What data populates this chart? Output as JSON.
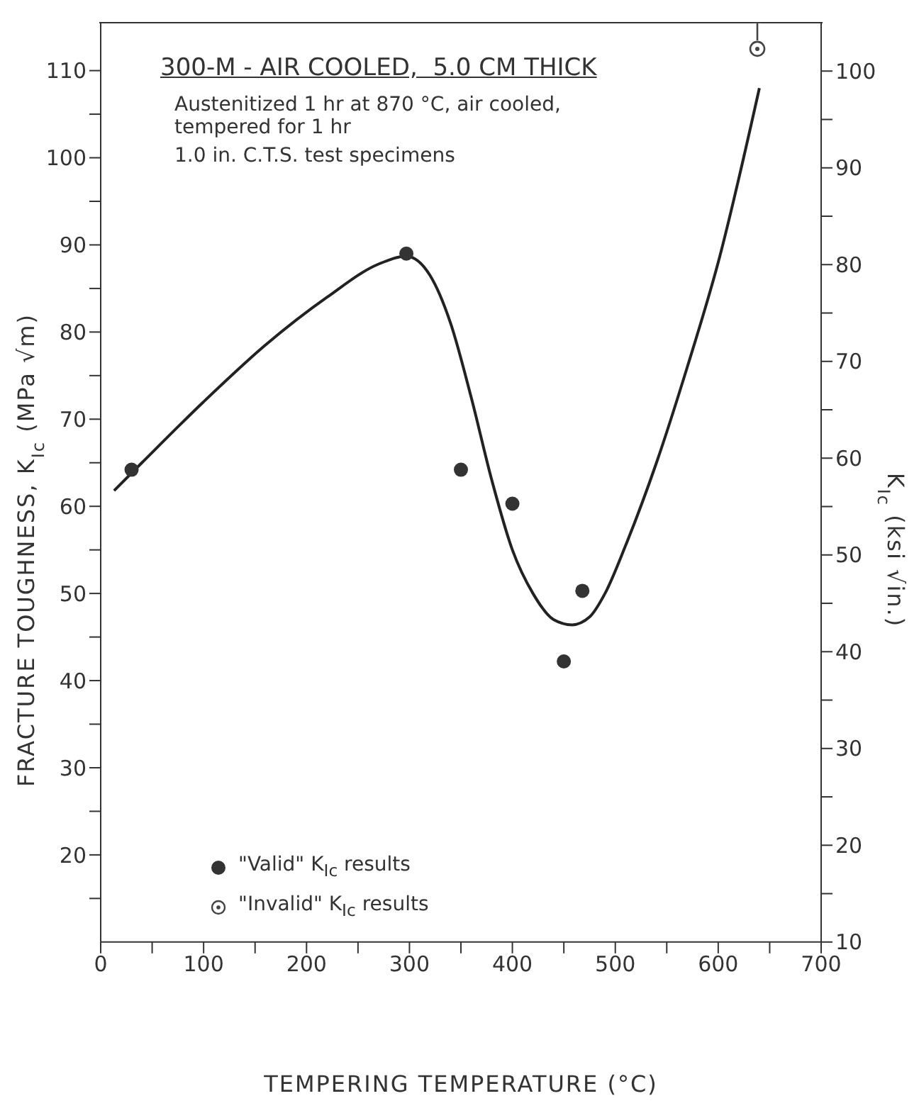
{
  "chart_data": {
    "type": "scatter",
    "title": "300-M - AIR COOLED,  5.0 CM THICK",
    "subtitle": "Austenitized 1 hr at 870 °C, air cooled, tempered for 1 hr",
    "annotations": [
      "1.0 in. C.T.S. test specimens"
    ],
    "xlabel": "TEMPERING TEMPERATURE (°C)",
    "ylabel": "FRACTURE TOUGHNESS, K$_{Ic}$ (MPa √m)",
    "y2label": "K$_{Ic}$ (ksi √in.)",
    "xlim": [
      0,
      700
    ],
    "xticks": [
      0,
      {
        "value": 50,
        "label": null
      },
      100,
      {
        "value": 150,
        "label": null
      },
      200,
      {
        "value": 250,
        "label": null
      },
      300,
      {
        "value": 350,
        "label": null
      },
      400,
      {
        "value": 450,
        "label": null
      },
      500,
      {
        "value": 550,
        "label": null
      },
      600,
      {
        "value": 650,
        "label": null
      },
      700
    ],
    "ylim": [
      10,
      115.5
    ],
    "yticks": [
      {
        "value": 15,
        "label": null
      },
      20,
      {
        "value": 25,
        "label": null
      },
      30,
      {
        "value": 35,
        "label": null
      },
      40,
      {
        "value": 45,
        "label": null
      },
      50,
      {
        "value": 55,
        "label": null
      },
      60,
      {
        "value": 65,
        "label": null
      },
      70,
      {
        "value": 75,
        "label": null
      },
      80,
      {
        "value": 85,
        "label": null
      },
      90,
      {
        "value": 95,
        "label": null
      },
      100,
      {
        "value": 105,
        "label": null
      },
      110
    ],
    "y2lim": [
      10,
      105
    ],
    "y2ticks": [
      10,
      {
        "value": 15,
        "label": null
      },
      20,
      {
        "value": 25,
        "label": null
      },
      30,
      {
        "value": 35,
        "label": null
      },
      40,
      {
        "value": 45,
        "label": null
      },
      50,
      {
        "value": 55,
        "label": null
      },
      60,
      {
        "value": 65,
        "label": null
      },
      70,
      {
        "value": 75,
        "label": null
      },
      80,
      {
        "value": 85,
        "label": null
      },
      90,
      {
        "value": 95,
        "label": null
      },
      100
    ],
    "legend": "bottom left",
    "marker": "circle",
    "series": [
      {
        "name": "\"Valid\" K$_{Ic}$ results",
        "color": "#333333",
        "x": [
          30,
          297,
          350,
          400,
          450,
          468
        ],
        "values": [
          64.2,
          89,
          64.2,
          60.3,
          42.2,
          50.3
        ]
      },
      {
        "name": "\"Invalid\" K$_{Ic}$ results",
        "color": "#444444",
        "x": [
          638
        ],
        "values": [
          112.5
        ]
      },
      {
        "type": "line",
        "color": "#222222",
        "marker": "none",
        "x": [
          13,
          40,
          100,
          160,
          220,
          270,
          297,
          320,
          340,
          360,
          380,
          400,
          420,
          440,
          458,
          475,
          490,
          510,
          540,
          570,
          600,
          640
        ],
        "values": [
          61.8,
          65,
          72,
          78.5,
          84,
          87.8,
          88.7,
          86.5,
          81,
          72.5,
          63,
          55,
          50,
          47,
          46.4,
          47.3,
          50,
          55.5,
          65,
          76,
          88,
          108
        ]
      }
    ]
  }
}
